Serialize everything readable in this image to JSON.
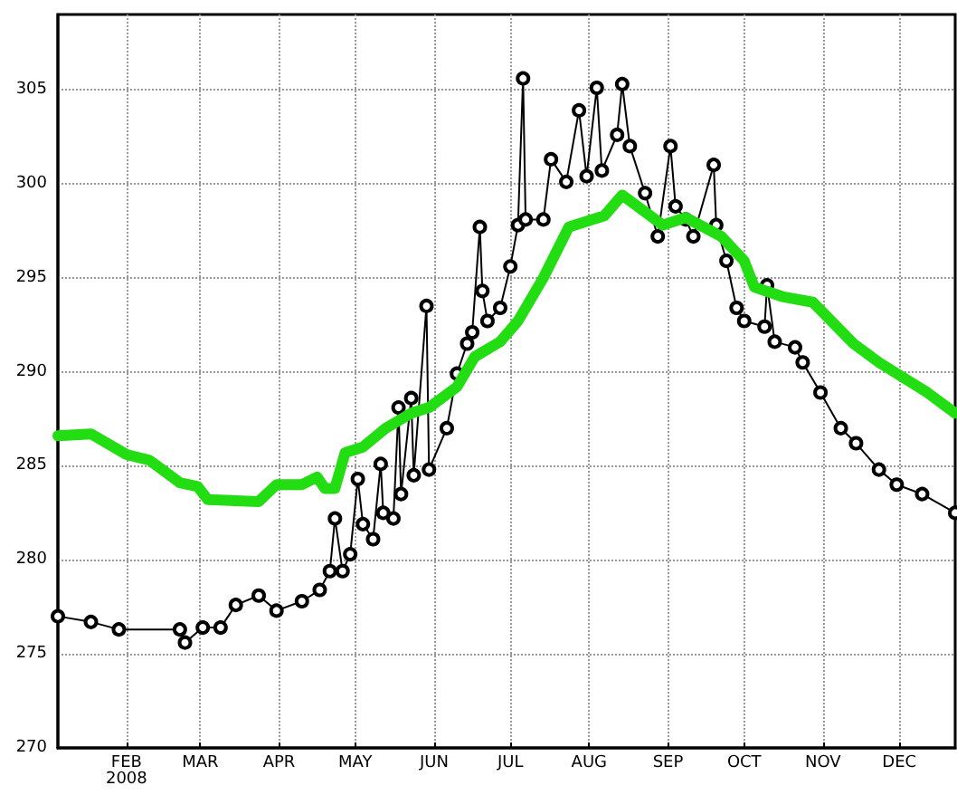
{
  "chart_data": {
    "type": "line",
    "marker": "circle",
    "grid": true,
    "xlim": [
      "2008-01-05",
      "2008-12-23"
    ],
    "xticks": [
      {
        "value": "2008-02-01",
        "label": "FEB\n2008"
      },
      {
        "value": "2008-03-01",
        "label": "MAR"
      },
      {
        "value": "2008-04-01",
        "label": "APR"
      },
      {
        "value": "2008-05-01",
        "label": "MAY"
      },
      {
        "value": "2008-06-01",
        "label": "JUN"
      },
      {
        "value": "2008-07-01",
        "label": "JUL"
      },
      {
        "value": "2008-08-01",
        "label": "AUG"
      },
      {
        "value": "2008-09-01",
        "label": "SEP"
      },
      {
        "value": "2008-10-01",
        "label": "OCT"
      },
      {
        "value": "2008-11-01",
        "label": "NOV"
      },
      {
        "value": "2008-12-01",
        "label": "DEC"
      }
    ],
    "ylim": [
      270,
      309
    ],
    "yticks": [
      270,
      275,
      280,
      285,
      290,
      295,
      300,
      305
    ],
    "series": [
      {
        "color": "#000000",
        "x": [
          "2008-01-05",
          "2008-01-18",
          "2008-01-29",
          "2008-02-22",
          "2008-02-24",
          "2008-03-02",
          "2008-03-09",
          "2008-03-15",
          "2008-03-24",
          "2008-03-31",
          "2008-04-10",
          "2008-04-17",
          "2008-04-21",
          "2008-04-23",
          "2008-04-26",
          "2008-04-29",
          "2008-05-02",
          "2008-05-04",
          "2008-05-08",
          "2008-05-11",
          "2008-05-12",
          "2008-05-16",
          "2008-05-18",
          "2008-05-19",
          "2008-05-23",
          "2008-05-24",
          "2008-05-29",
          "2008-05-30",
          "2008-06-06",
          "2008-06-10",
          "2008-06-14",
          "2008-06-16",
          "2008-06-19",
          "2008-06-20",
          "2008-06-22",
          "2008-06-27",
          "2008-07-01",
          "2008-07-04",
          "2008-07-06",
          "2008-07-07",
          "2008-07-14",
          "2008-07-17",
          "2008-07-23",
          "2008-07-28",
          "2008-07-31",
          "2008-08-04",
          "2008-08-06",
          "2008-08-12",
          "2008-08-14",
          "2008-08-17",
          "2008-08-23",
          "2008-08-28",
          "2008-09-02",
          "2008-09-04",
          "2008-09-08",
          "2008-09-11",
          "2008-09-19",
          "2008-09-20",
          "2008-09-24",
          "2008-09-28",
          "2008-10-01",
          "2008-10-09",
          "2008-10-10",
          "2008-10-13",
          "2008-10-21",
          "2008-10-24",
          "2008-10-31",
          "2008-11-08",
          "2008-11-14",
          "2008-11-23",
          "2008-11-30",
          "2008-12-10",
          "2008-12-23"
        ],
        "values": [
          277.0,
          276.7,
          276.3,
          276.3,
          275.6,
          276.4,
          276.4,
          277.6,
          278.1,
          277.3,
          277.8,
          278.4,
          279.4,
          282.2,
          279.4,
          280.3,
          284.3,
          281.9,
          281.1,
          285.1,
          282.5,
          282.2,
          288.1,
          283.5,
          288.6,
          284.5,
          293.5,
          284.8,
          287.0,
          289.9,
          291.5,
          292.1,
          297.7,
          294.3,
          292.7,
          293.4,
          295.6,
          297.8,
          305.6,
          298.1,
          298.1,
          301.3,
          300.1,
          303.9,
          300.4,
          305.1,
          300.7,
          302.6,
          305.3,
          302.0,
          299.5,
          297.2,
          302.0,
          298.8,
          298.1,
          297.2,
          301.0,
          297.8,
          295.9,
          293.4,
          292.7,
          292.4,
          294.6,
          291.6,
          291.3,
          290.5,
          288.9,
          287.0,
          286.2,
          284.8,
          284.0,
          283.5,
          282.5
        ]
      },
      {
        "color": "#22dd11",
        "marker": "none",
        "x": [
          "2008-01-05",
          "2008-01-18",
          "2008-02-01",
          "2008-02-10",
          "2008-02-22",
          "2008-02-29",
          "2008-03-04",
          "2008-03-24",
          "2008-03-31",
          "2008-04-10",
          "2008-04-16",
          "2008-04-19",
          "2008-04-23",
          "2008-04-27",
          "2008-05-04",
          "2008-05-13",
          "2008-05-23",
          "2008-05-30",
          "2008-06-10",
          "2008-06-17",
          "2008-06-27",
          "2008-07-04",
          "2008-07-14",
          "2008-07-24",
          "2008-08-07",
          "2008-08-14",
          "2008-08-30",
          "2008-09-08",
          "2008-09-22",
          "2008-10-01",
          "2008-10-05",
          "2008-10-16",
          "2008-10-28",
          "2008-11-13",
          "2008-11-23",
          "2008-12-12",
          "2008-12-23"
        ],
        "values": [
          286.6,
          286.7,
          285.6,
          285.3,
          284.1,
          283.9,
          283.2,
          283.1,
          284.0,
          284.0,
          284.4,
          283.8,
          283.8,
          285.7,
          286.0,
          287.0,
          287.8,
          288.1,
          289.2,
          290.8,
          291.6,
          292.7,
          295.0,
          297.7,
          298.3,
          299.4,
          297.8,
          298.2,
          297.2,
          295.9,
          294.5,
          294.0,
          293.7,
          291.5,
          290.5,
          288.9,
          287.8
        ]
      }
    ]
  }
}
